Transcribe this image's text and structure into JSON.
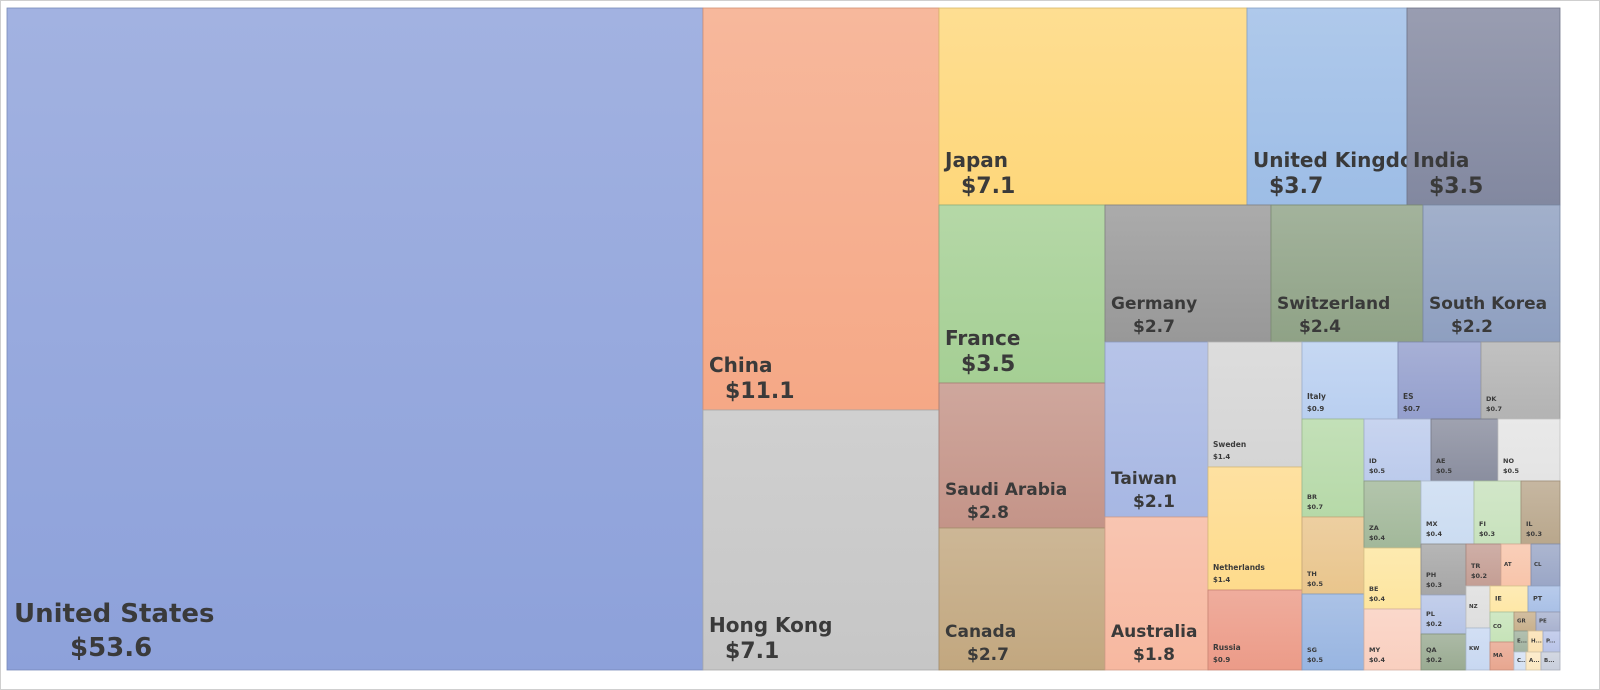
{
  "chart_data": {
    "type": "treemap",
    "items": [
      {
        "label": "United States",
        "value_label": "$53.6",
        "value": 53.6,
        "color": "#8da1da"
      },
      {
        "label": "China",
        "value_label": "$11.1",
        "value": 11.1,
        "color": "#f5a886"
      },
      {
        "label": "Hong Kong",
        "value_label": "$7.1",
        "value": 7.1,
        "color": "#c6c6c6"
      },
      {
        "label": "Japan",
        "value_label": "$7.1",
        "value": 7.1,
        "color": "#fed77a"
      },
      {
        "label": "United Kingdom",
        "value_label": "$3.7",
        "value": 3.7,
        "color": "#9dbde6"
      },
      {
        "label": "India",
        "value_label": "$3.5",
        "value": 3.5,
        "color": "#8288a0"
      },
      {
        "label": "France",
        "value_label": "$3.5",
        "value": 3.5,
        "color": "#a5cf94"
      },
      {
        "label": "Germany",
        "value_label": "$2.7",
        "value": 2.7,
        "color": "#989898"
      },
      {
        "label": "Switzerland",
        "value_label": "$2.4",
        "value": 2.4,
        "color": "#8fa286"
      },
      {
        "label": "South Korea",
        "value_label": "$2.2",
        "value": 2.2,
        "color": "#8e9fc0"
      },
      {
        "label": "Saudi Arabia",
        "value_label": "$2.8",
        "value": 2.8,
        "color": "#c49488"
      },
      {
        "label": "Canada",
        "value_label": "$2.7",
        "value": 2.7,
        "color": "#c2a77f"
      },
      {
        "label": "Taiwan",
        "value_label": "$2.1",
        "value": 2.1,
        "color": "#a7b7e3"
      },
      {
        "label": "Australia",
        "value_label": "$1.8",
        "value": 1.8,
        "color": "#f7b8a0"
      },
      {
        "label": "Sweden",
        "value_label": "$1.4",
        "value": 1.4,
        "color": "#d5d5d5"
      },
      {
        "label": "Netherlands",
        "value_label": "$1.4",
        "value": 1.4,
        "color": "#fedb8c"
      },
      {
        "label": "Russia",
        "value_label": "$0.9",
        "value": 0.9,
        "color": "#ec9b88"
      },
      {
        "label": "Italy",
        "value_label": "$0.9",
        "value": 0.9,
        "color": "#b9cff0"
      },
      {
        "label": "ES",
        "value_label": "$0.7",
        "value": 0.7,
        "color": "#949fcd"
      },
      {
        "label": "DK",
        "value_label": "$0.7",
        "value": 0.7,
        "color": "#b3b3b3"
      },
      {
        "label": "BR",
        "value_label": "$0.7",
        "value": 0.7,
        "color": "#b6d9a8"
      },
      {
        "label": "ID",
        "value_label": "$0.5",
        "value": 0.5,
        "color": "#bccbec"
      },
      {
        "label": "AE",
        "value_label": "$0.5",
        "value": 0.5,
        "color": "#8a8e9f"
      },
      {
        "label": "NO",
        "value_label": "$0.5",
        "value": 0.5,
        "color": "#e4e4e4"
      },
      {
        "label": "TH",
        "value_label": "$0.5",
        "value": 0.5,
        "color": "#e9c58c"
      },
      {
        "label": "SG",
        "value_label": "$0.5",
        "value": 0.5,
        "color": "#98b5e1"
      },
      {
        "label": "ZA",
        "value_label": "$0.4",
        "value": 0.4,
        "color": "#a2b89a"
      },
      {
        "label": "MX",
        "value_label": "$0.4",
        "value": 0.4,
        "color": "#cbdcf1"
      },
      {
        "label": "FI",
        "value_label": "$0.3",
        "value": 0.3,
        "color": "#c8e2bd"
      },
      {
        "label": "IL",
        "value_label": "$0.3",
        "value": 0.3,
        "color": "#b9a78c"
      },
      {
        "label": "BE",
        "value_label": "$0.4",
        "value": 0.4,
        "color": "#fde59f"
      },
      {
        "label": "MY",
        "value_label": "$0.4",
        "value": 0.4,
        "color": "#f9cfbf"
      },
      {
        "label": "PH",
        "value_label": "$0.3",
        "value": 0.3,
        "color": "#a6a6a6"
      },
      {
        "label": "PL",
        "value_label": "$0.2",
        "value": 0.2,
        "color": "#b6c4e6"
      },
      {
        "label": "QA",
        "value_label": "$0.2",
        "value": 0.2,
        "color": "#9aab92"
      },
      {
        "label": "TR",
        "value_label": "$0.2",
        "value": 0.2,
        "color": "#c49e94"
      },
      {
        "label": "AT",
        "value_label": "$0.2",
        "value": 0.2,
        "color": "#f8c4aa"
      },
      {
        "label": "CL",
        "value_label": "$0.1",
        "value": 0.1,
        "color": "#9aa6c6"
      },
      {
        "label": "NZ",
        "value_label": "$0.1",
        "value": 0.1,
        "color": "#dedede"
      },
      {
        "label": "IE",
        "value_label": "",
        "value": null,
        "color": "#fee7a6"
      },
      {
        "label": "PT",
        "value_label": "",
        "value": null,
        "color": "#a9c0e6"
      },
      {
        "label": "CO",
        "value_label": "",
        "value": null,
        "color": "#c6e3b8"
      },
      {
        "label": "GR",
        "value_label": "",
        "value": null,
        "color": "#c8b08c"
      },
      {
        "label": "PE",
        "value_label": "",
        "value": null,
        "color": "#a9b2cf"
      },
      {
        "label": "KW",
        "value_label": "$0.1",
        "value": 0.1,
        "color": "#c8d8f1"
      },
      {
        "label": "MA",
        "value_label": "",
        "value": null,
        "color": "#e8a68f"
      },
      {
        "label": "E...",
        "value_label": "",
        "value": null,
        "color": "#a2b3a0"
      },
      {
        "label": "H...",
        "value_label": "",
        "value": null,
        "color": "#fae1b2"
      },
      {
        "label": "P...",
        "value_label": "",
        "value": null,
        "color": "#b9c4e8"
      },
      {
        "label": "C...",
        "value_label": "",
        "value": null,
        "color": "#d4e1f4"
      },
      {
        "label": "A...",
        "value_label": "",
        "value": null,
        "color": "#fbe8c2"
      },
      {
        "label": "B...",
        "value_label": "",
        "value": null,
        "color": "#c9cfdc"
      }
    ]
  }
}
